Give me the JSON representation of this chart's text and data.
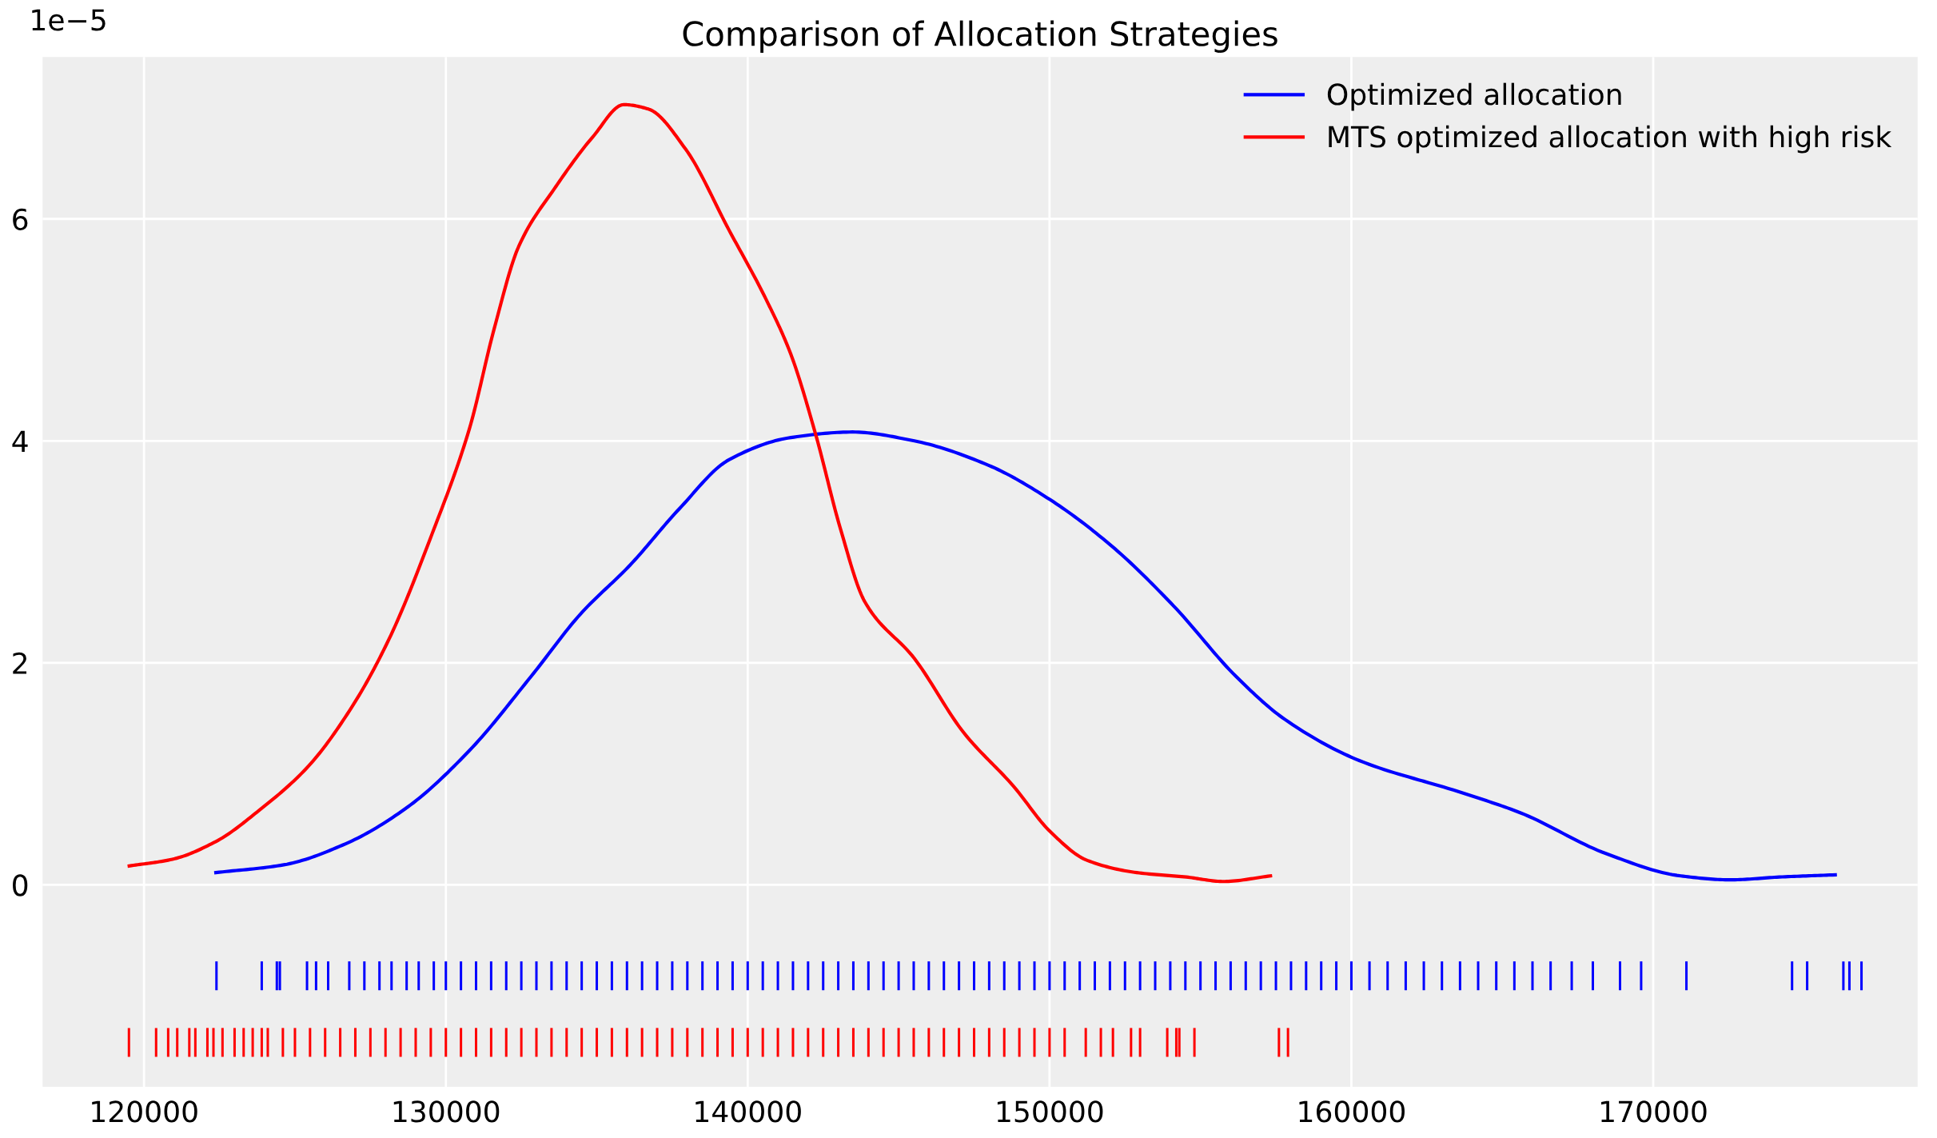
{
  "chart_data": {
    "type": "line",
    "title": "Comparison of Allocation Strategies",
    "annotations": [
      "1e−5"
    ],
    "xlim": [
      116640,
      178760
    ],
    "ylim": [
      -1.82,
      7.46
    ],
    "xticks": [
      120000,
      130000,
      140000,
      150000,
      160000,
      170000
    ],
    "yticks": [
      0,
      2,
      4,
      6
    ],
    "grid": true,
    "legend": "top right",
    "series": [
      {
        "name": "Optimized allocation",
        "color": "#0000ff",
        "x": [
          122380,
          124630,
          126680,
          128730,
          130780,
          132830,
          134460,
          136100,
          137740,
          139380,
          141430,
          143470,
          145520,
          147980,
          150020,
          152070,
          154120,
          156170,
          157800,
          160260,
          163540,
          165590,
          168450,
          170910,
          172550,
          174180,
          176030
        ],
        "values": [
          0.11,
          0.18,
          0.37,
          0.7,
          1.21,
          1.88,
          2.44,
          2.88,
          3.39,
          3.83,
          4.03,
          4.08,
          4.0,
          3.78,
          3.47,
          3.05,
          2.51,
          1.88,
          1.49,
          1.12,
          0.84,
          0.65,
          0.28,
          0.08,
          0.045,
          0.07,
          0.09
        ]
      },
      {
        "name": "MTS optimized allocation with high risk",
        "color": "#ff0000",
        "x": [
          119510,
          120940,
          122380,
          123810,
          125450,
          126880,
          128110,
          129540,
          130780,
          131600,
          132410,
          133640,
          134870,
          135900,
          136710,
          137940,
          139380,
          140600,
          141430,
          142250,
          143060,
          143880,
          145520,
          147160,
          148800,
          150020,
          151250,
          152890,
          154530,
          155760,
          157320
        ],
        "values": [
          0.17,
          0.23,
          0.39,
          0.67,
          1.07,
          1.6,
          2.21,
          3.16,
          4.11,
          5.01,
          5.75,
          6.29,
          6.74,
          7.03,
          6.99,
          6.63,
          5.9,
          5.28,
          4.78,
          4.06,
          3.22,
          2.55,
          2.04,
          1.37,
          0.89,
          0.48,
          0.22,
          0.11,
          0.07,
          0.03,
          0.08
        ]
      },
      {
        "type": "bar",
        "color": "#0000ff",
        "x": [
          122400,
          123900,
          124400,
          124500,
          125400,
          125700,
          126100,
          126800,
          127300,
          127800,
          128200,
          128700,
          129100,
          129600,
          130000,
          130500,
          131000,
          131500,
          132000,
          132500,
          133000,
          133500,
          134000,
          134500,
          135000,
          135500,
          136000,
          136500,
          137000,
          137500,
          138000,
          138500,
          139000,
          139500,
          140000,
          140500,
          141000,
          141500,
          142000,
          142500,
          143000,
          143500,
          144000,
          144500,
          145000,
          145500,
          146000,
          146500,
          147000,
          147500,
          148000,
          148500,
          149000,
          149500,
          150000,
          150500,
          151000,
          151500,
          152000,
          152500,
          153000,
          153500,
          154000,
          154500,
          155000,
          155500,
          156000,
          156500,
          157000,
          157500,
          158000,
          158500,
          159000,
          159500,
          160000,
          160600,
          161200,
          161800,
          162400,
          163000,
          163600,
          164200,
          164800,
          165400,
          166000,
          166600,
          167300,
          168000,
          168900,
          169600,
          171100,
          174600,
          175100,
          176300,
          176500,
          176900
        ],
        "base": [
          -0.95,
          -0.95,
          -0.95,
          -0.95,
          -0.95,
          -0.95,
          -0.95,
          -0.95,
          -0.95,
          -0.95,
          -0.95,
          -0.95,
          -0.95,
          -0.95,
          -0.95,
          -0.95,
          -0.95,
          -0.95,
          -0.95,
          -0.95,
          -0.95,
          -0.95,
          -0.95,
          -0.95,
          -0.95,
          -0.95,
          -0.95,
          -0.95,
          -0.95,
          -0.95,
          -0.95,
          -0.95,
          -0.95,
          -0.95,
          -0.95,
          -0.95,
          -0.95,
          -0.95,
          -0.95,
          -0.95,
          -0.95,
          -0.95,
          -0.95,
          -0.95,
          -0.95,
          -0.95,
          -0.95,
          -0.95,
          -0.95,
          -0.95,
          -0.95,
          -0.95,
          -0.95,
          -0.95,
          -0.95,
          -0.95,
          -0.95,
          -0.95,
          -0.95,
          -0.95,
          -0.95,
          -0.95,
          -0.95,
          -0.95,
          -0.95,
          -0.95,
          -0.95,
          -0.95,
          -0.95,
          -0.95,
          -0.95,
          -0.95,
          -0.95,
          -0.95,
          -0.95,
          -0.95,
          -0.95,
          -0.95,
          -0.95,
          -0.95,
          -0.95,
          -0.95,
          -0.95,
          -0.95,
          -0.95,
          -0.95,
          -0.95,
          -0.95,
          -0.95,
          -0.95,
          -0.95,
          -0.95,
          -0.95,
          -0.95,
          -0.95,
          -0.95
        ],
        "values": [
          0.26,
          0.26,
          0.26,
          0.26,
          0.26,
          0.26,
          0.26,
          0.26,
          0.26,
          0.26,
          0.26,
          0.26,
          0.26,
          0.26,
          0.26,
          0.26,
          0.26,
          0.26,
          0.26,
          0.26,
          0.26,
          0.26,
          0.26,
          0.26,
          0.26,
          0.26,
          0.26,
          0.26,
          0.26,
          0.26,
          0.26,
          0.26,
          0.26,
          0.26,
          0.26,
          0.26,
          0.26,
          0.26,
          0.26,
          0.26,
          0.26,
          0.26,
          0.26,
          0.26,
          0.26,
          0.26,
          0.26,
          0.26,
          0.26,
          0.26,
          0.26,
          0.26,
          0.26,
          0.26,
          0.26,
          0.26,
          0.26,
          0.26,
          0.26,
          0.26,
          0.26,
          0.26,
          0.26,
          0.26,
          0.26,
          0.26,
          0.26,
          0.26,
          0.26,
          0.26,
          0.26,
          0.26,
          0.26,
          0.26,
          0.26,
          0.26,
          0.26,
          0.26,
          0.26,
          0.26,
          0.26,
          0.26,
          0.26,
          0.26,
          0.26,
          0.26,
          0.26,
          0.26,
          0.26,
          0.26,
          0.26,
          0.26,
          0.26,
          0.26,
          0.26,
          0.26
        ]
      },
      {
        "type": "bar",
        "color": "#ff0000",
        "x": [
          119500,
          120400,
          120800,
          121100,
          121500,
          121700,
          122100,
          122300,
          122600,
          123000,
          123300,
          123600,
          123900,
          124100,
          124600,
          125000,
          125500,
          126000,
          126500,
          127000,
          127500,
          128000,
          128500,
          129000,
          129500,
          130000,
          130500,
          131000,
          131500,
          132000,
          132500,
          133000,
          133500,
          134000,
          134500,
          135000,
          135500,
          136000,
          136500,
          137000,
          137500,
          138000,
          138500,
          139000,
          139500,
          140000,
          140500,
          141000,
          141500,
          142000,
          142500,
          143000,
          143500,
          144000,
          144500,
          145000,
          145500,
          146000,
          146500,
          147000,
          147500,
          148000,
          148500,
          149000,
          149500,
          150000,
          150500,
          151200,
          151700,
          152100,
          152700,
          153000,
          153900,
          154200,
          154300,
          154800,
          157600,
          157900
        ],
        "base": [
          -1.55,
          -1.55,
          -1.55,
          -1.55,
          -1.55,
          -1.55,
          -1.55,
          -1.55,
          -1.55,
          -1.55,
          -1.55,
          -1.55,
          -1.55,
          -1.55,
          -1.55,
          -1.55,
          -1.55,
          -1.55,
          -1.55,
          -1.55,
          -1.55,
          -1.55,
          -1.55,
          -1.55,
          -1.55,
          -1.55,
          -1.55,
          -1.55,
          -1.55,
          -1.55,
          -1.55,
          -1.55,
          -1.55,
          -1.55,
          -1.55,
          -1.55,
          -1.55,
          -1.55,
          -1.55,
          -1.55,
          -1.55,
          -1.55,
          -1.55,
          -1.55,
          -1.55,
          -1.55,
          -1.55,
          -1.55,
          -1.55,
          -1.55,
          -1.55,
          -1.55,
          -1.55,
          -1.55,
          -1.55,
          -1.55,
          -1.55,
          -1.55,
          -1.55,
          -1.55,
          -1.55,
          -1.55,
          -1.55,
          -1.55,
          -1.55,
          -1.55,
          -1.55,
          -1.55,
          -1.55,
          -1.55,
          -1.55,
          -1.55,
          -1.55,
          -1.55,
          -1.55,
          -1.55,
          -1.55,
          -1.55
        ],
        "values": [
          0.26,
          0.26,
          0.26,
          0.26,
          0.26,
          0.26,
          0.26,
          0.26,
          0.26,
          0.26,
          0.26,
          0.26,
          0.26,
          0.26,
          0.26,
          0.26,
          0.26,
          0.26,
          0.26,
          0.26,
          0.26,
          0.26,
          0.26,
          0.26,
          0.26,
          0.26,
          0.26,
          0.26,
          0.26,
          0.26,
          0.26,
          0.26,
          0.26,
          0.26,
          0.26,
          0.26,
          0.26,
          0.26,
          0.26,
          0.26,
          0.26,
          0.26,
          0.26,
          0.26,
          0.26,
          0.26,
          0.26,
          0.26,
          0.26,
          0.26,
          0.26,
          0.26,
          0.26,
          0.26,
          0.26,
          0.26,
          0.26,
          0.26,
          0.26,
          0.26,
          0.26,
          0.26,
          0.26,
          0.26,
          0.26,
          0.26,
          0.26,
          0.26,
          0.26,
          0.26,
          0.26,
          0.26,
          0.26,
          0.26,
          0.26,
          0.26,
          0.26,
          0.26
        ]
      }
    ]
  }
}
